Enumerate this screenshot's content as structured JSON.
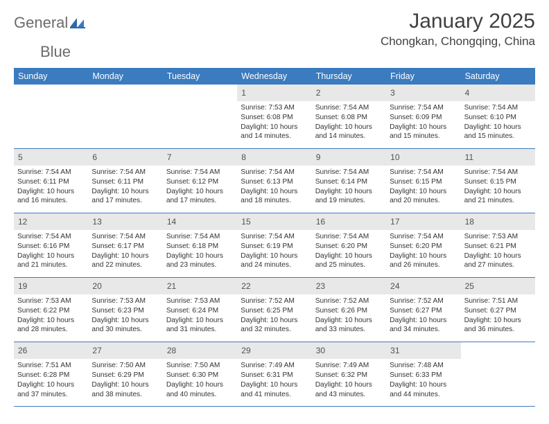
{
  "brand": {
    "word1": "General",
    "word2": "Blue"
  },
  "title": "January 2025",
  "location": "Chongkan, Chongqing, China",
  "colors": {
    "header_bg": "#3b7bbf",
    "band_bg": "#e8e8e8",
    "rule": "#3b7bbf",
    "text": "#333333",
    "title_text": "#404040",
    "logo_gray": "#6b6b6b",
    "logo_blue": "#3b7bbf"
  },
  "typography": {
    "title_fontsize": 30,
    "location_fontsize": 17,
    "dow_fontsize": 12.5,
    "daynum_fontsize": 12,
    "detail_fontsize": 10.2
  },
  "days_of_week": [
    "Sunday",
    "Monday",
    "Tuesday",
    "Wednesday",
    "Thursday",
    "Friday",
    "Saturday"
  ],
  "weeks": [
    [
      null,
      null,
      null,
      {
        "n": "1",
        "sunrise": "7:53 AM",
        "sunset": "6:08 PM",
        "daylight": "10 hours and 14 minutes."
      },
      {
        "n": "2",
        "sunrise": "7:54 AM",
        "sunset": "6:08 PM",
        "daylight": "10 hours and 14 minutes."
      },
      {
        "n": "3",
        "sunrise": "7:54 AM",
        "sunset": "6:09 PM",
        "daylight": "10 hours and 15 minutes."
      },
      {
        "n": "4",
        "sunrise": "7:54 AM",
        "sunset": "6:10 PM",
        "daylight": "10 hours and 15 minutes."
      }
    ],
    [
      {
        "n": "5",
        "sunrise": "7:54 AM",
        "sunset": "6:11 PM",
        "daylight": "10 hours and 16 minutes."
      },
      {
        "n": "6",
        "sunrise": "7:54 AM",
        "sunset": "6:11 PM",
        "daylight": "10 hours and 17 minutes."
      },
      {
        "n": "7",
        "sunrise": "7:54 AM",
        "sunset": "6:12 PM",
        "daylight": "10 hours and 17 minutes."
      },
      {
        "n": "8",
        "sunrise": "7:54 AM",
        "sunset": "6:13 PM",
        "daylight": "10 hours and 18 minutes."
      },
      {
        "n": "9",
        "sunrise": "7:54 AM",
        "sunset": "6:14 PM",
        "daylight": "10 hours and 19 minutes."
      },
      {
        "n": "10",
        "sunrise": "7:54 AM",
        "sunset": "6:15 PM",
        "daylight": "10 hours and 20 minutes."
      },
      {
        "n": "11",
        "sunrise": "7:54 AM",
        "sunset": "6:15 PM",
        "daylight": "10 hours and 21 minutes."
      }
    ],
    [
      {
        "n": "12",
        "sunrise": "7:54 AM",
        "sunset": "6:16 PM",
        "daylight": "10 hours and 21 minutes."
      },
      {
        "n": "13",
        "sunrise": "7:54 AM",
        "sunset": "6:17 PM",
        "daylight": "10 hours and 22 minutes."
      },
      {
        "n": "14",
        "sunrise": "7:54 AM",
        "sunset": "6:18 PM",
        "daylight": "10 hours and 23 minutes."
      },
      {
        "n": "15",
        "sunrise": "7:54 AM",
        "sunset": "6:19 PM",
        "daylight": "10 hours and 24 minutes."
      },
      {
        "n": "16",
        "sunrise": "7:54 AM",
        "sunset": "6:20 PM",
        "daylight": "10 hours and 25 minutes."
      },
      {
        "n": "17",
        "sunrise": "7:54 AM",
        "sunset": "6:20 PM",
        "daylight": "10 hours and 26 minutes."
      },
      {
        "n": "18",
        "sunrise": "7:53 AM",
        "sunset": "6:21 PM",
        "daylight": "10 hours and 27 minutes."
      }
    ],
    [
      {
        "n": "19",
        "sunrise": "7:53 AM",
        "sunset": "6:22 PM",
        "daylight": "10 hours and 28 minutes."
      },
      {
        "n": "20",
        "sunrise": "7:53 AM",
        "sunset": "6:23 PM",
        "daylight": "10 hours and 30 minutes."
      },
      {
        "n": "21",
        "sunrise": "7:53 AM",
        "sunset": "6:24 PM",
        "daylight": "10 hours and 31 minutes."
      },
      {
        "n": "22",
        "sunrise": "7:52 AM",
        "sunset": "6:25 PM",
        "daylight": "10 hours and 32 minutes."
      },
      {
        "n": "23",
        "sunrise": "7:52 AM",
        "sunset": "6:26 PM",
        "daylight": "10 hours and 33 minutes."
      },
      {
        "n": "24",
        "sunrise": "7:52 AM",
        "sunset": "6:27 PM",
        "daylight": "10 hours and 34 minutes."
      },
      {
        "n": "25",
        "sunrise": "7:51 AM",
        "sunset": "6:27 PM",
        "daylight": "10 hours and 36 minutes."
      }
    ],
    [
      {
        "n": "26",
        "sunrise": "7:51 AM",
        "sunset": "6:28 PM",
        "daylight": "10 hours and 37 minutes."
      },
      {
        "n": "27",
        "sunrise": "7:50 AM",
        "sunset": "6:29 PM",
        "daylight": "10 hours and 38 minutes."
      },
      {
        "n": "28",
        "sunrise": "7:50 AM",
        "sunset": "6:30 PM",
        "daylight": "10 hours and 40 minutes."
      },
      {
        "n": "29",
        "sunrise": "7:49 AM",
        "sunset": "6:31 PM",
        "daylight": "10 hours and 41 minutes."
      },
      {
        "n": "30",
        "sunrise": "7:49 AM",
        "sunset": "6:32 PM",
        "daylight": "10 hours and 43 minutes."
      },
      {
        "n": "31",
        "sunrise": "7:48 AM",
        "sunset": "6:33 PM",
        "daylight": "10 hours and 44 minutes."
      },
      null
    ]
  ],
  "labels": {
    "sunrise": "Sunrise: ",
    "sunset": "Sunset: ",
    "daylight": "Daylight: "
  }
}
